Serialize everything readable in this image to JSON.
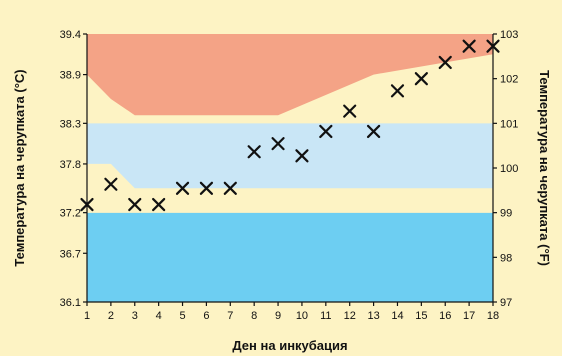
{
  "chart_data": {
    "type": "scatter",
    "title": "",
    "xlabel": "Ден на инкубация",
    "ylabel_left": "Температура на черупката (°C)",
    "ylabel_right": "Температура на черупката (°F)",
    "x_ticks": [
      "1",
      "2",
      "3",
      "4",
      "5",
      "6",
      "7",
      "8",
      "9",
      "10",
      "11",
      "12",
      "13",
      "14",
      "15",
      "16",
      "17",
      "18"
    ],
    "y_left_ticks": [
      "36.1",
      "36.7",
      "37.2",
      "37.8",
      "38.3",
      "38.9",
      "39.4"
    ],
    "y_right_ticks": [
      "97",
      "98",
      "99",
      "100",
      "101",
      "102",
      "103"
    ],
    "xlim": [
      1,
      18
    ],
    "ylim_left": [
      36.1,
      39.4
    ],
    "ylim_right": [
      97,
      103
    ],
    "marker": "x",
    "points": [
      {
        "x": 1,
        "y": 37.3
      },
      {
        "x": 2,
        "y": 37.55
      },
      {
        "x": 3,
        "y": 37.3
      },
      {
        "x": 4,
        "y": 37.3
      },
      {
        "x": 5,
        "y": 37.5
      },
      {
        "x": 6,
        "y": 37.5
      },
      {
        "x": 7,
        "y": 37.5
      },
      {
        "x": 8,
        "y": 37.95
      },
      {
        "x": 9,
        "y": 38.05
      },
      {
        "x": 10,
        "y": 37.9
      },
      {
        "x": 11,
        "y": 38.2
      },
      {
        "x": 12,
        "y": 38.45
      },
      {
        "x": 13,
        "y": 38.2
      },
      {
        "x": 14,
        "y": 38.7
      },
      {
        "x": 15,
        "y": 38.85
      },
      {
        "x": 16,
        "y": 39.05
      },
      {
        "x": 17,
        "y": 39.25
      },
      {
        "x": 18,
        "y": 39.25
      }
    ],
    "bands": [
      {
        "name": "low",
        "color": "#6dcef2",
        "upper": [
          [
            1,
            37.2
          ],
          [
            18,
            37.2
          ]
        ]
      },
      {
        "name": "lower-caution",
        "color": "#fdf3c4",
        "upper": [
          [
            1,
            37.8
          ],
          [
            2,
            37.8
          ],
          [
            3,
            37.5
          ],
          [
            18,
            37.5
          ]
        ]
      },
      {
        "name": "optimal",
        "color": "#c9e6f6",
        "upper": [
          [
            1,
            38.3
          ],
          [
            18,
            38.3
          ]
        ]
      },
      {
        "name": "upper-caution",
        "color": "#fdf3c4",
        "upper": [
          [
            1,
            38.9
          ],
          [
            2,
            38.6
          ],
          [
            3,
            38.4
          ],
          [
            9,
            38.4
          ],
          [
            13,
            38.9
          ],
          [
            18,
            39.15
          ]
        ]
      },
      {
        "name": "high",
        "color": "#f4a386",
        "upper": [
          [
            1,
            39.4
          ],
          [
            18,
            39.4
          ]
        ]
      }
    ],
    "grid": false,
    "legend": "none"
  }
}
